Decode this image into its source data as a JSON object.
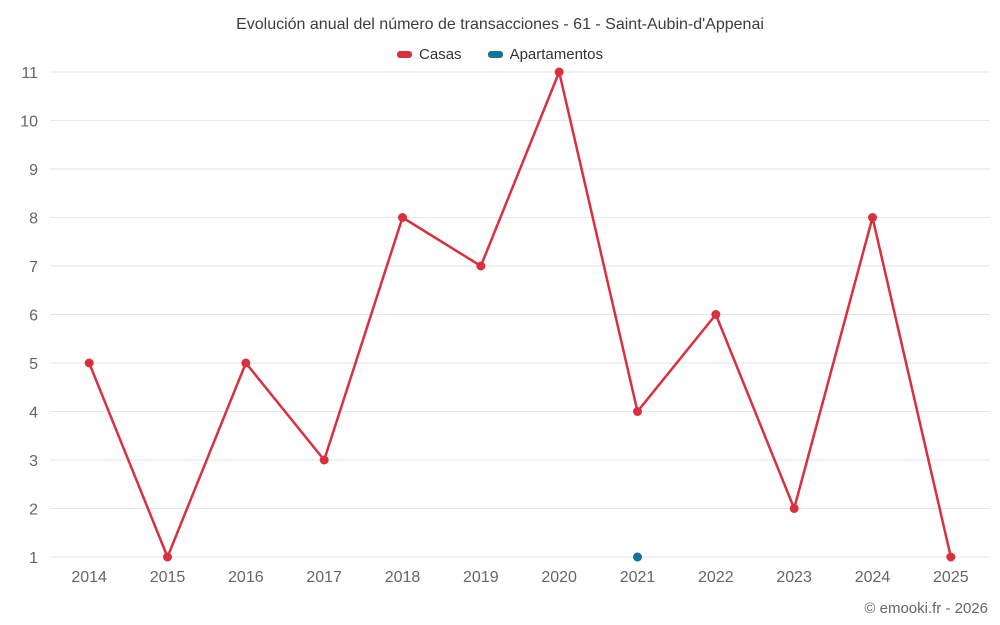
{
  "title": "Evolución anual del número de transacciones - 61 - Saint-Aubin-d'Appenai",
  "legend": [
    {
      "label": "Casas",
      "color": "#d9303e"
    },
    {
      "label": "Apartamentos",
      "color": "#15729c"
    }
  ],
  "footer": "© emooki.fr - 2026",
  "chart_data": {
    "type": "line",
    "categories": [
      "2014",
      "2015",
      "2016",
      "2017",
      "2018",
      "2019",
      "2020",
      "2021",
      "2022",
      "2023",
      "2024",
      "2025"
    ],
    "series": [
      {
        "name": "Casas",
        "color": "#d9303e",
        "values": [
          5,
          1,
          5,
          3,
          8,
          7,
          11,
          4,
          6,
          2,
          8,
          1
        ]
      },
      {
        "name": "Apartamentos",
        "color": "#15729c",
        "values": [
          null,
          null,
          null,
          null,
          null,
          null,
          null,
          1,
          null,
          null,
          null,
          null
        ]
      }
    ],
    "ylim": [
      1,
      11
    ],
    "ytick_step": 1,
    "grid": "horizontal",
    "legend_position": "top",
    "grid_color": "#e6e6e6",
    "axis_label_color": "#666666"
  }
}
